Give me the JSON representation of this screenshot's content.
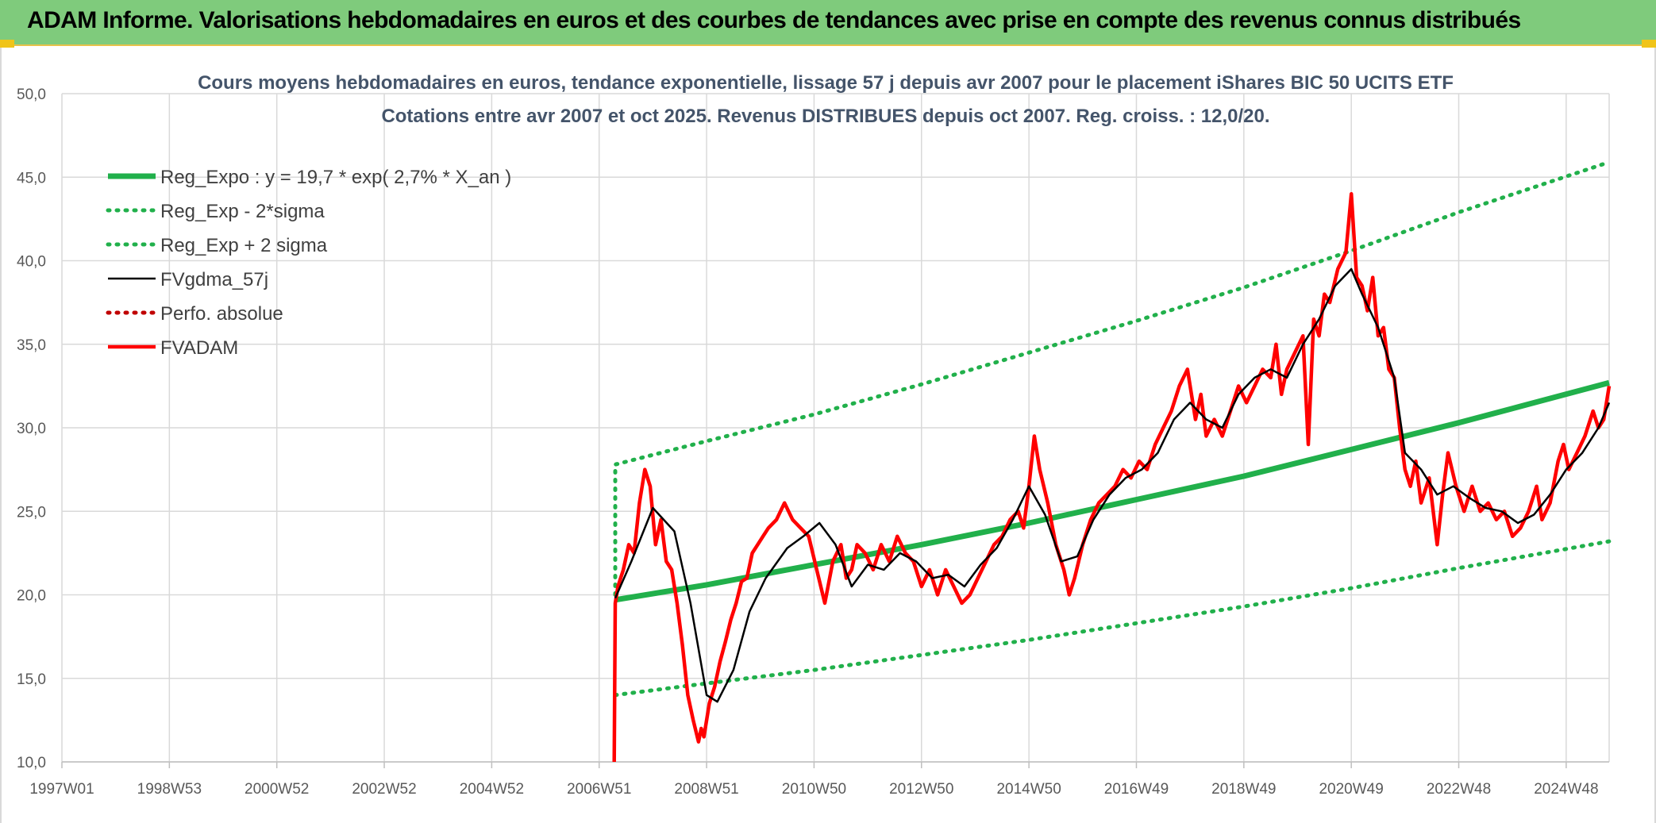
{
  "header": {
    "title": "ADAM Informe. Valorisations hebdomadaires en euros et des courbes de tendances avec prise en compte des revenus connus distribués"
  },
  "colors": {
    "banner": "#7fcb7c",
    "reg_expo": "#21b04b",
    "fvgdma": "#000000",
    "fvadam": "#ff0000",
    "perfo": "#c00000",
    "grid": "#d9d9d9"
  },
  "chart_data": {
    "type": "line",
    "title_line1": "Cours moyens hebdomadaires en euros, tendance exponentielle, lissage 57 j depuis avr 2007 pour le placement iShares BIC 50 UCITS ETF",
    "title_line2": "Cotations entre avr 2007 et oct 2025. Revenus DISTRIBUES depuis oct 2007. Reg. croiss. : 12,0/20.",
    "xlabel": "",
    "ylabel": "",
    "x_range": [
      1997.0,
      2025.8
    ],
    "ylim": [
      10,
      50
    ],
    "y_ticks": [
      "10,0",
      "15,0",
      "20,0",
      "25,0",
      "30,0",
      "35,0",
      "40,0",
      "45,0",
      "50,0"
    ],
    "x_ticks": [
      {
        "label": "1997W01",
        "x": 1997.0
      },
      {
        "label": "1998W53",
        "x": 1999.0
      },
      {
        "label": "2000W52",
        "x": 2001.0
      },
      {
        "label": "2002W52",
        "x": 2003.0
      },
      {
        "label": "2004W52",
        "x": 2005.0
      },
      {
        "label": "2006W51",
        "x": 2007.0
      },
      {
        "label": "2008W51",
        "x": 2009.0
      },
      {
        "label": "2010W50",
        "x": 2011.0
      },
      {
        "label": "2012W50",
        "x": 2013.0
      },
      {
        "label": "2014W50",
        "x": 2015.0
      },
      {
        "label": "2016W49",
        "x": 2017.0
      },
      {
        "label": "2018W49",
        "x": 2019.0
      },
      {
        "label": "2020W49",
        "x": 2021.0
      },
      {
        "label": "2022W48",
        "x": 2023.0
      },
      {
        "label": "2024W48",
        "x": 2025.0
      }
    ],
    "grid": true,
    "legend_position": "top-left",
    "series": [
      {
        "name": "Reg_Expo : y = 19,7 * exp( 2,7% *  X_an )",
        "style": "solid-thick",
        "color": "#21b04b",
        "x": [
          2007.3,
          2009,
          2011,
          2013,
          2015,
          2017,
          2019,
          2021,
          2023,
          2025.8
        ],
        "y": [
          19.7,
          20.6,
          21.8,
          23.0,
          24.3,
          25.7,
          27.1,
          28.7,
          30.3,
          32.7
        ]
      },
      {
        "name": "Reg_Exp - 2*sigma",
        "style": "dotted",
        "color": "#21b04b",
        "x": [
          2007.3,
          2009,
          2011,
          2013,
          2015,
          2017,
          2019,
          2021,
          2023,
          2025.8
        ],
        "y": [
          14.0,
          14.7,
          15.5,
          16.4,
          17.3,
          18.3,
          19.3,
          20.4,
          21.6,
          23.2
        ]
      },
      {
        "name": "Reg_Exp + 2 sigma",
        "style": "dotted",
        "color": "#21b04b",
        "x": [
          2007.3,
          2009,
          2011,
          2013,
          2015,
          2017,
          2019,
          2021,
          2023,
          2025.8
        ],
        "y": [
          27.8,
          29.2,
          30.8,
          32.6,
          34.5,
          36.4,
          38.4,
          40.6,
          42.9,
          45.9
        ]
      },
      {
        "name": "FVgdma_57j",
        "style": "solid",
        "color": "#000000",
        "x": [
          2007.3,
          2007.6,
          2008.0,
          2008.4,
          2008.7,
          2009.0,
          2009.2,
          2009.5,
          2009.8,
          2010.1,
          2010.5,
          2010.8,
          2011.1,
          2011.4,
          2011.7,
          2012.0,
          2012.3,
          2012.6,
          2012.9,
          2013.2,
          2013.5,
          2013.8,
          2014.1,
          2014.4,
          2014.7,
          2015.0,
          2015.3,
          2015.6,
          2015.9,
          2016.2,
          2016.5,
          2016.8,
          2017.1,
          2017.4,
          2017.7,
          2018.0,
          2018.3,
          2018.6,
          2018.9,
          2019.2,
          2019.5,
          2019.8,
          2020.1,
          2020.4,
          2020.7,
          2021.0,
          2021.2,
          2021.5,
          2021.8,
          2022.0,
          2022.3,
          2022.6,
          2022.9,
          2023.2,
          2023.5,
          2023.8,
          2024.1,
          2024.4,
          2024.7,
          2025.0,
          2025.3,
          2025.6,
          2025.8
        ],
        "y": [
          19.8,
          22.0,
          25.2,
          23.8,
          19.5,
          14.0,
          13.6,
          15.5,
          19.0,
          21.0,
          22.8,
          23.5,
          24.3,
          23.0,
          20.5,
          21.8,
          21.5,
          22.5,
          22.0,
          21.0,
          21.2,
          20.5,
          21.8,
          22.8,
          24.5,
          26.5,
          24.8,
          22.0,
          22.3,
          24.5,
          26.0,
          27.0,
          27.5,
          28.5,
          30.5,
          31.5,
          30.5,
          30.0,
          32.0,
          33.0,
          33.5,
          33.0,
          35.0,
          36.5,
          38.5,
          39.5,
          38.0,
          36.0,
          33.0,
          28.5,
          27.5,
          26.0,
          26.5,
          25.8,
          25.2,
          25.0,
          24.3,
          24.8,
          26.0,
          27.5,
          28.5,
          30.0,
          31.5
        ]
      },
      {
        "name": "Perfo. absolue",
        "style": "dotted",
        "color": "#c00000",
        "x": [],
        "y": []
      },
      {
        "name": "FVADAM",
        "style": "solid-thick",
        "color": "#ff0000",
        "x": [
          2007.28,
          2007.3,
          2007.35,
          2007.45,
          2007.55,
          2007.65,
          2007.75,
          2007.85,
          2007.95,
          2008.05,
          2008.15,
          2008.25,
          2008.35,
          2008.45,
          2008.55,
          2008.65,
          2008.75,
          2008.85,
          2008.9,
          2008.95,
          2009.05,
          2009.15,
          2009.25,
          2009.35,
          2009.45,
          2009.55,
          2009.65,
          2009.75,
          2009.85,
          2009.95,
          2010.05,
          2010.15,
          2010.3,
          2010.45,
          2010.6,
          2010.75,
          2010.9,
          2011.05,
          2011.2,
          2011.35,
          2011.5,
          2011.6,
          2011.7,
          2011.8,
          2011.95,
          2012.1,
          2012.25,
          2012.4,
          2012.55,
          2012.7,
          2012.85,
          2013.0,
          2013.15,
          2013.3,
          2013.45,
          2013.6,
          2013.75,
          2013.9,
          2014.05,
          2014.2,
          2014.35,
          2014.5,
          2014.65,
          2014.8,
          2014.9,
          2015.0,
          2015.1,
          2015.2,
          2015.35,
          2015.5,
          2015.65,
          2015.75,
          2015.85,
          2016.0,
          2016.15,
          2016.3,
          2016.45,
          2016.6,
          2016.75,
          2016.9,
          2017.05,
          2017.2,
          2017.35,
          2017.5,
          2017.65,
          2017.8,
          2017.95,
          2018.1,
          2018.2,
          2018.3,
          2018.45,
          2018.6,
          2018.75,
          2018.9,
          2019.05,
          2019.2,
          2019.35,
          2019.5,
          2019.6,
          2019.7,
          2019.8,
          2019.95,
          2020.1,
          2020.2,
          2020.3,
          2020.4,
          2020.5,
          2020.6,
          2020.75,
          2020.9,
          2021.0,
          2021.1,
          2021.2,
          2021.3,
          2021.4,
          2021.5,
          2021.6,
          2021.7,
          2021.8,
          2021.9,
          2022.0,
          2022.1,
          2022.2,
          2022.3,
          2022.45,
          2022.6,
          2022.7,
          2022.8,
          2022.95,
          2023.1,
          2023.25,
          2023.4,
          2023.55,
          2023.7,
          2023.85,
          2024.0,
          2024.15,
          2024.3,
          2024.45,
          2024.55,
          2024.7,
          2024.85,
          2024.95,
          2025.05,
          2025.2,
          2025.35,
          2025.5,
          2025.6,
          2025.7,
          2025.8
        ],
        "y": [
          10.0,
          19.5,
          20.5,
          21.5,
          23.0,
          22.5,
          25.5,
          27.5,
          26.5,
          23.0,
          24.5,
          22.0,
          21.5,
          19.5,
          17.0,
          14.0,
          12.5,
          11.2,
          12.0,
          11.5,
          13.5,
          14.5,
          16.0,
          17.2,
          18.5,
          19.5,
          20.8,
          21.0,
          22.5,
          23.0,
          23.5,
          24.0,
          24.5,
          25.5,
          24.5,
          24.0,
          23.5,
          21.5,
          19.5,
          22.0,
          23.0,
          21.0,
          21.5,
          23.0,
          22.5,
          21.5,
          23.0,
          22.0,
          23.5,
          22.5,
          22.0,
          20.5,
          21.5,
          20.0,
          21.5,
          20.5,
          19.5,
          20.0,
          21.0,
          22.0,
          23.0,
          23.5,
          24.5,
          25.0,
          24.0,
          26.5,
          29.5,
          27.5,
          25.5,
          23.0,
          21.5,
          20.0,
          21.0,
          23.0,
          24.5,
          25.5,
          26.0,
          26.5,
          27.5,
          27.0,
          28.0,
          27.5,
          29.0,
          30.0,
          31.0,
          32.5,
          33.5,
          30.5,
          32.0,
          29.5,
          30.5,
          29.5,
          31.0,
          32.5,
          31.5,
          32.5,
          33.5,
          33.0,
          35.0,
          32.0,
          33.5,
          34.5,
          35.5,
          29.0,
          36.5,
          35.5,
          38.0,
          37.5,
          39.5,
          40.5,
          44.0,
          39.0,
          38.5,
          37.0,
          39.0,
          35.5,
          36.0,
          33.5,
          33.0,
          30.0,
          27.5,
          26.5,
          28.0,
          25.5,
          27.0,
          23.0,
          26.0,
          28.5,
          26.5,
          25.0,
          26.5,
          25.0,
          25.5,
          24.5,
          25.0,
          23.5,
          24.0,
          25.0,
          26.5,
          24.5,
          25.5,
          28.0,
          29.0,
          27.5,
          28.5,
          29.5,
          31.0,
          30.0,
          30.5,
          32.5
        ]
      }
    ]
  }
}
